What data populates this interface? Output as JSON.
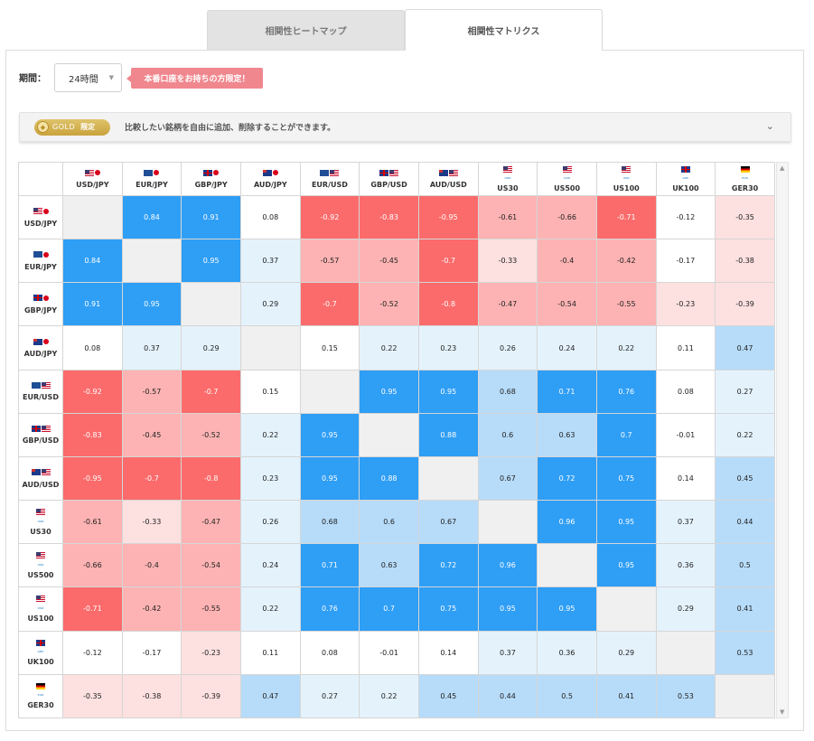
{
  "tabs": [
    {
      "label": "相関性ヒートマップ"
    },
    {
      "label": "相関性マトリクス"
    }
  ],
  "period": {
    "label": "期間：",
    "value": "24時間",
    "promo": "本番口座をお持ちの方限定！"
  },
  "gold": {
    "badge": "GOLD",
    "limited": "限定",
    "text": "比較したい銘柄を自由に追加、削除することができます。"
  },
  "colors": {
    "strong_pos": "#2f9ef5",
    "mid_pos": "#b7dcfa",
    "weak_pos": "#e4f2fc",
    "neutral": "#ffffff",
    "weak_neg": "#fde0e0",
    "mid_neg": "#fdb3b3",
    "strong_neg": "#fb6b6b",
    "diag": "#f0f0f0"
  },
  "symbols": [
    {
      "code": "USD/JPY",
      "flags": [
        "us",
        "jp"
      ],
      "sub": ""
    },
    {
      "code": "EUR/JPY",
      "flags": [
        "eu",
        "jp"
      ],
      "sub": ""
    },
    {
      "code": "GBP/JPY",
      "flags": [
        "gb",
        "jp"
      ],
      "sub": ""
    },
    {
      "code": "AUD/JPY",
      "flags": [
        "au",
        "jp"
      ],
      "sub": ""
    },
    {
      "code": "EUR/USD",
      "flags": [
        "eu",
        "us"
      ],
      "sub": ""
    },
    {
      "code": "GBP/USD",
      "flags": [
        "gb",
        "us"
      ],
      "sub": ""
    },
    {
      "code": "AUD/USD",
      "flags": [
        "au",
        "us"
      ],
      "sub": ""
    },
    {
      "code": "US30",
      "flags": [
        "us"
      ],
      "sub": "USD"
    },
    {
      "code": "US500",
      "flags": [
        "us"
      ],
      "sub": "USD"
    },
    {
      "code": "US100",
      "flags": [
        "us"
      ],
      "sub": "USD"
    },
    {
      "code": "UK100",
      "flags": [
        "gb"
      ],
      "sub": "GBP"
    },
    {
      "code": "GER30",
      "flags": [
        "de"
      ],
      "sub": "EUR"
    }
  ],
  "matrix": [
    [
      null,
      0.84,
      0.91,
      0.08,
      -0.92,
      -0.83,
      -0.95,
      -0.61,
      -0.66,
      -0.71,
      -0.12,
      -0.35
    ],
    [
      0.84,
      null,
      0.95,
      0.37,
      -0.57,
      -0.45,
      -0.7,
      -0.33,
      -0.4,
      -0.42,
      -0.17,
      -0.38
    ],
    [
      0.91,
      0.95,
      null,
      0.29,
      -0.7,
      -0.52,
      -0.8,
      -0.47,
      -0.54,
      -0.55,
      -0.23,
      -0.39
    ],
    [
      0.08,
      0.37,
      0.29,
      null,
      0.15,
      0.22,
      0.23,
      0.26,
      0.24,
      0.22,
      0.11,
      0.47
    ],
    [
      -0.92,
      -0.57,
      -0.7,
      0.15,
      null,
      0.95,
      0.95,
      0.68,
      0.71,
      0.76,
      0.08,
      0.27
    ],
    [
      -0.83,
      -0.45,
      -0.52,
      0.22,
      0.95,
      null,
      0.88,
      0.6,
      0.63,
      0.7,
      -0.01,
      0.22
    ],
    [
      -0.95,
      -0.7,
      -0.8,
      0.23,
      0.95,
      0.88,
      null,
      0.67,
      0.72,
      0.75,
      0.14,
      0.45
    ],
    [
      -0.61,
      -0.33,
      -0.47,
      0.26,
      0.68,
      0.6,
      0.67,
      null,
      0.96,
      0.95,
      0.37,
      0.44
    ],
    [
      -0.66,
      -0.4,
      -0.54,
      0.24,
      0.71,
      0.63,
      0.72,
      0.96,
      null,
      0.95,
      0.36,
      0.5
    ],
    [
      -0.71,
      -0.42,
      -0.55,
      0.22,
      0.76,
      0.7,
      0.75,
      0.95,
      0.95,
      null,
      0.29,
      0.41
    ],
    [
      -0.12,
      -0.17,
      -0.23,
      0.11,
      0.08,
      -0.01,
      0.14,
      0.37,
      0.36,
      0.29,
      null,
      0.53
    ],
    [
      -0.35,
      -0.38,
      -0.39,
      0.47,
      0.27,
      0.22,
      0.45,
      0.44,
      0.5,
      0.41,
      0.53,
      null
    ]
  ]
}
